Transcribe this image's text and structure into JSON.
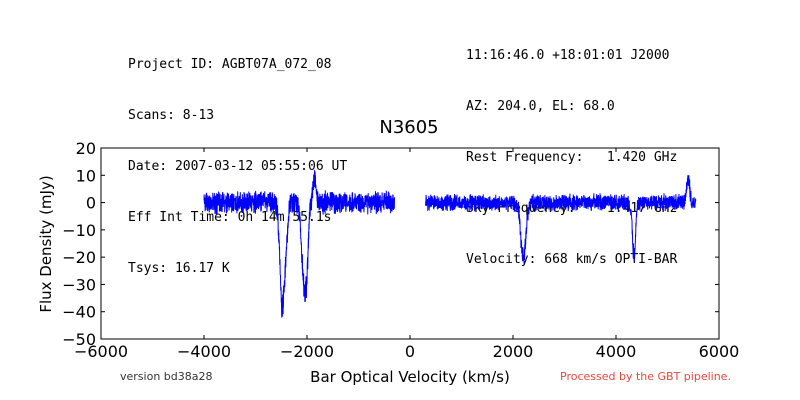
{
  "header": {
    "left": [
      "Project ID: AGBT07A_072_08",
      "Scans: 8-13",
      "Date: 2007-03-12 05:55:06 UT",
      "Eff Int Time: 0h 14m 55.1s",
      "Tsys: 16.17 K"
    ],
    "right": [
      "11:16:46.0 +18:01:01 J2000",
      "AZ: 204.0, EL: 68.0",
      "Rest Frequency:   1.420 GHz",
      "Sky Frequency:    1.417 GHz",
      "Velocity: 668 km/s OPTI-BAR"
    ]
  },
  "footer": {
    "version": "version bd38a28",
    "processed": "Processed by the GBT pipeline.",
    "processed_color": "#e8473f"
  },
  "colors": {
    "line": "#0000ff",
    "axes": "#000000"
  },
  "chart_data": {
    "type": "line",
    "title": "N3605",
    "xlabel": "Bar Optical Velocity (km/s)",
    "ylabel": "Flux Density (mJy)",
    "xlim": [
      -6000,
      6000
    ],
    "ylim": [
      -50,
      20
    ],
    "xticks": [
      -6000,
      -4000,
      -2000,
      0,
      2000,
      4000,
      6000
    ],
    "xtick_labels": [
      "−6000",
      "−4000",
      "−2000",
      "0",
      "2000",
      "4000",
      "6000"
    ],
    "yticks": [
      -50,
      -40,
      -30,
      -20,
      -10,
      0,
      10,
      20
    ],
    "ytick_labels": [
      "−50",
      "−40",
      "−30",
      "−20",
      "−10",
      "0",
      "10",
      "20"
    ],
    "grid": false,
    "series": [
      {
        "segments": [
          {
            "x_range": [
              -4000,
              -300
            ],
            "baseline": 0,
            "noise_amplitude": 4,
            "features": [
              {
                "x": -2480,
                "y": -42
              },
              {
                "x": -2400,
                "y": -10
              },
              {
                "x": -2060,
                "y": -31
              },
              {
                "x": -2000,
                "y": -16
              },
              {
                "x": -1850,
                "y": 10
              }
            ]
          },
          {
            "x_range": [
              300,
              5550
            ],
            "baseline": 0,
            "noise_amplitude": 3,
            "features": [
              {
                "x": 2200,
                "y": -30
              },
              {
                "x": 2200,
                "y": 9
              },
              {
                "x": 4350,
                "y": -21
              },
              {
                "x": 5400,
                "y": 10
              }
            ]
          }
        ]
      }
    ]
  }
}
